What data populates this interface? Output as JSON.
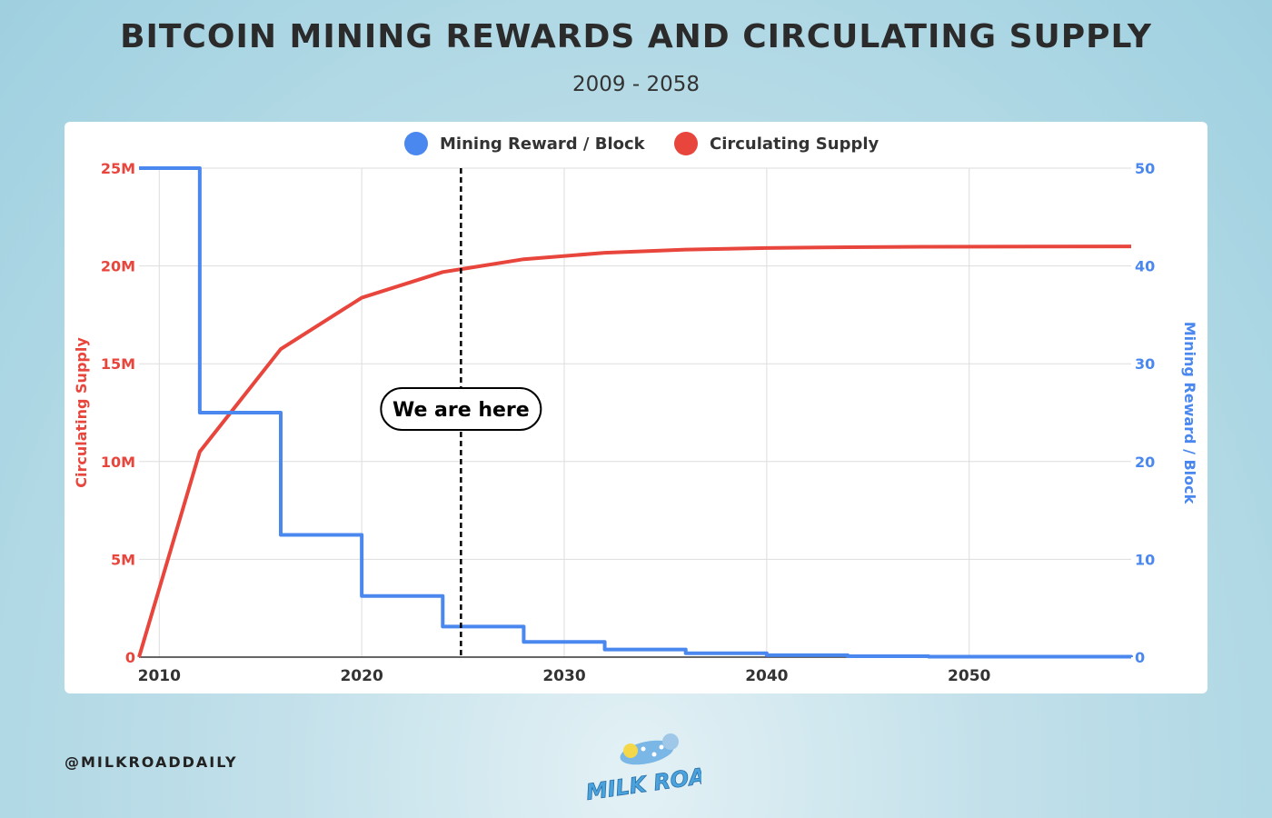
{
  "header": {
    "title": "BITCOIN MINING REWARDS AND CIRCULATING SUPPLY",
    "subtitle": "2009 - 2058"
  },
  "footer": {
    "handle": "@MILKROADDAILY",
    "logo_text": "MILK ROAD"
  },
  "colors": {
    "supply": "#e8453c",
    "reward": "#4a87ee",
    "marker": "#000000",
    "grid": "#dddddd",
    "axis_text": "#333333"
  },
  "chart_data": {
    "type": "line",
    "x_ticks": [
      2010,
      2020,
      2030,
      2040,
      2050
    ],
    "xlim": [
      2009,
      2058
    ],
    "legend": {
      "position": "top-center",
      "entries": [
        "Mining Reward / Block",
        "Circulating Supply"
      ]
    },
    "grid": true,
    "series": [
      {
        "name": "Circulating Supply",
        "axis": "left",
        "shape": "linear",
        "points": [
          [
            2009,
            0
          ],
          [
            2012,
            10500000
          ],
          [
            2016,
            15750000
          ],
          [
            2020,
            18375000
          ],
          [
            2024,
            19687500
          ],
          [
            2028,
            20343750
          ],
          [
            2032,
            20671875
          ],
          [
            2036,
            20835937
          ],
          [
            2040,
            20917968
          ],
          [
            2044,
            20958984
          ],
          [
            2048,
            20979492
          ],
          [
            2058,
            21000000
          ]
        ]
      },
      {
        "name": "Mining Reward / Block",
        "axis": "right",
        "shape": "step",
        "points": [
          [
            2009,
            50
          ],
          [
            2012,
            25
          ],
          [
            2016,
            12.5
          ],
          [
            2020,
            6.25
          ],
          [
            2024,
            3.125
          ],
          [
            2028,
            1.5625
          ],
          [
            2032,
            0.78125
          ],
          [
            2036,
            0.390625
          ],
          [
            2040,
            0.1953125
          ],
          [
            2044,
            0.09765625
          ],
          [
            2048,
            0.048828125
          ],
          [
            2058,
            0
          ]
        ]
      }
    ],
    "y_left": {
      "label": "Circulating Supply",
      "ylim": [
        0,
        25000000
      ],
      "ticks": [
        0,
        5000000,
        10000000,
        15000000,
        20000000,
        25000000
      ],
      "tick_labels": [
        "0",
        "5M",
        "10M",
        "15M",
        "20M",
        "25M"
      ]
    },
    "y_right": {
      "label": "Mining Reward / Block",
      "ylim": [
        0,
        50
      ],
      "ticks": [
        0,
        10,
        20,
        30,
        40,
        50
      ],
      "tick_labels": [
        "0",
        "10",
        "20",
        "30",
        "40",
        "50"
      ]
    },
    "annotation": {
      "text": "We are here",
      "x": 2024.9,
      "line_style": "dashed"
    }
  }
}
